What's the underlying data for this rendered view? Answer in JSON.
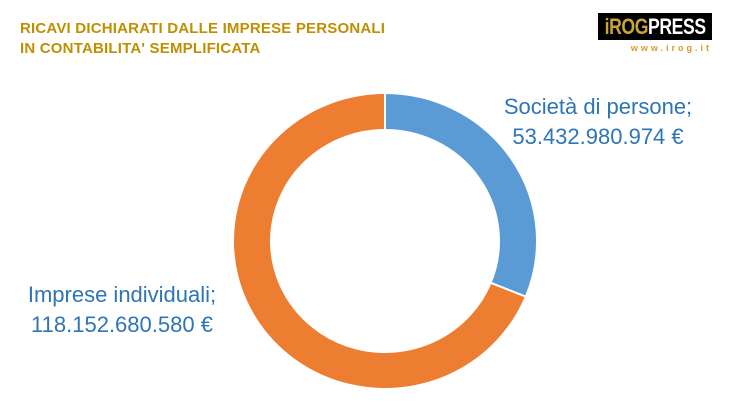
{
  "page": {
    "background": "#FFFFFF"
  },
  "header": {
    "title_line1": "RICAVI DICHIARATI DALLE IMPRESE PERSONALI",
    "title_line2": "IN CONTABILITA' SEMPLIFICATA",
    "title_color": "#BF8F00"
  },
  "logo": {
    "brand_part1": "iROG",
    "brand_part2": "PRESS",
    "url_text": "www.irog.it",
    "box_color": "#000000",
    "brand_gold_color": "#C9A437",
    "brand_press_color": "#FFFFFF",
    "url_color": "#D79A2B"
  },
  "chart_data": {
    "type": "pie",
    "subtype": "doughnut",
    "title": "RICAVI DICHIARATI DALLE IMPRESE PERSONALI IN CONTABILITA' SEMPLIFICATA",
    "categories": [
      "Società di persone",
      "Imprese individuali"
    ],
    "values": [
      53432980974,
      118152680580
    ],
    "colors": [
      "#5B9BD5",
      "#ED7D31"
    ],
    "labels": [
      {
        "line1": "Società di persone;",
        "line2": "53.432.980.974 €"
      },
      {
        "line1": "Imprese individuali;",
        "line2": "118.152.680.580 €"
      }
    ],
    "label_color": "#2E75B6",
    "currency": "€",
    "start_angle_deg": 0,
    "direction": "clockwise",
    "hole_ratio": 0.75,
    "legend": "none",
    "grid": false
  }
}
